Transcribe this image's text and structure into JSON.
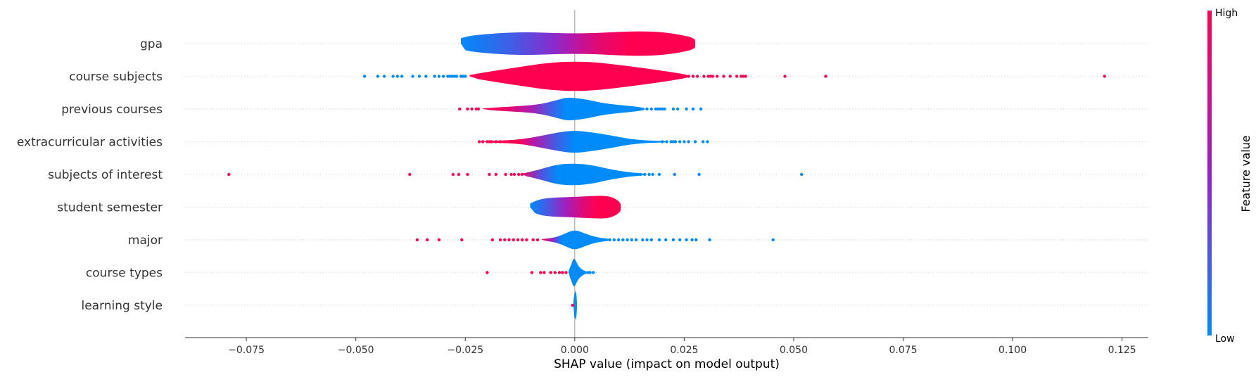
{
  "chart_data": {
    "type": "violin",
    "xlabel": "SHAP value (impact on model output)",
    "xlim": [
      -0.089,
      0.131
    ],
    "xticks": [
      -0.075,
      -0.05,
      -0.025,
      0.0,
      0.025,
      0.05,
      0.075,
      0.1,
      0.125
    ],
    "xtick_labels": [
      "−0.075",
      "−0.050",
      "−0.025",
      "0.000",
      "0.025",
      "0.050",
      "0.075",
      "0.100",
      "0.125"
    ],
    "colorbar": {
      "title": "Feature value",
      "high_label": "High",
      "low_label": "Low",
      "low_color": "#008bfb",
      "high_color": "#ff0051"
    },
    "zero_line": true,
    "features": [
      {
        "name": "gpa",
        "violin": [
          [
            -0.026,
            0.35
          ],
          [
            -0.024,
            0.5
          ],
          [
            -0.02,
            0.62
          ],
          [
            -0.015,
            0.72
          ],
          [
            -0.01,
            0.74
          ],
          [
            -0.005,
            0.68
          ],
          [
            0,
            0.66
          ],
          [
            0.005,
            0.68
          ],
          [
            0.01,
            0.76
          ],
          [
            0.015,
            0.8
          ],
          [
            0.02,
            0.74
          ],
          [
            0.024,
            0.58
          ],
          [
            0.0275,
            0.35
          ]
        ],
        "color": [
          [
            -0.026,
            0.0
          ],
          [
            -0.015,
            0.2
          ],
          [
            -0.005,
            0.45
          ],
          [
            0.0,
            0.65
          ],
          [
            0.005,
            0.85
          ],
          [
            0.012,
            1.0
          ],
          [
            0.0275,
            1.0
          ]
        ],
        "points": []
      },
      {
        "name": "course subjects",
        "violin": [
          [
            -0.024,
            0.08
          ],
          [
            -0.02,
            0.28
          ],
          [
            -0.015,
            0.5
          ],
          [
            -0.01,
            0.72
          ],
          [
            -0.005,
            0.9
          ],
          [
            0,
            0.96
          ],
          [
            0.005,
            0.9
          ],
          [
            0.01,
            0.74
          ],
          [
            0.015,
            0.56
          ],
          [
            0.02,
            0.36
          ],
          [
            0.0245,
            0.16
          ],
          [
            0.026,
            0.06
          ]
        ],
        "color": [
          [
            -0.024,
            1.0
          ],
          [
            0.026,
            1.0
          ]
        ],
        "points": [
          [
            -0.048,
            0
          ],
          [
            -0.045,
            0
          ],
          [
            -0.0435,
            0
          ],
          [
            -0.0415,
            0
          ],
          [
            -0.0405,
            0
          ],
          [
            -0.0395,
            0
          ],
          [
            -0.037,
            0
          ],
          [
            -0.0355,
            0
          ],
          [
            -0.034,
            0
          ],
          [
            -0.032,
            0
          ],
          [
            -0.031,
            0
          ],
          [
            -0.03,
            0
          ],
          [
            -0.029,
            0
          ],
          [
            -0.0285,
            0
          ],
          [
            -0.028,
            0
          ],
          [
            -0.0275,
            0
          ],
          [
            -0.027,
            0
          ],
          [
            -0.026,
            0
          ],
          [
            -0.0255,
            0
          ],
          [
            -0.025,
            0
          ],
          [
            0.026,
            1
          ],
          [
            0.027,
            1
          ],
          [
            0.028,
            1
          ],
          [
            0.0295,
            1
          ],
          [
            0.0305,
            1
          ],
          [
            0.031,
            1
          ],
          [
            0.0315,
            1
          ],
          [
            0.0325,
            1
          ],
          [
            0.034,
            1
          ],
          [
            0.0355,
            1
          ],
          [
            0.037,
            1
          ],
          [
            0.038,
            1
          ],
          [
            0.0385,
            1
          ],
          [
            0.039,
            1
          ],
          [
            0.048,
            1
          ],
          [
            0.0573,
            1
          ],
          [
            0.121,
            1
          ]
        ]
      },
      {
        "name": "previous courses",
        "violin": [
          [
            -0.021,
            0.04
          ],
          [
            -0.017,
            0.12
          ],
          [
            -0.012,
            0.2
          ],
          [
            -0.008,
            0.3
          ],
          [
            -0.004,
            0.58
          ],
          [
            -0.002,
            0.74
          ],
          [
            0.0,
            0.72
          ],
          [
            0.003,
            0.6
          ],
          [
            0.006,
            0.4
          ],
          [
            0.01,
            0.26
          ],
          [
            0.014,
            0.16
          ],
          [
            0.016,
            0.06
          ]
        ],
        "color": [
          [
            -0.021,
            1.0
          ],
          [
            -0.016,
            0.92
          ],
          [
            -0.01,
            0.6
          ],
          [
            -0.006,
            0.25
          ],
          [
            -0.002,
            0.0
          ],
          [
            0.016,
            0.0
          ]
        ],
        "points": [
          [
            -0.0263,
            1
          ],
          [
            -0.0245,
            1
          ],
          [
            -0.0235,
            1
          ],
          [
            -0.0225,
            1
          ],
          [
            -0.022,
            1
          ],
          [
            0.0165,
            0
          ],
          [
            0.0175,
            0
          ],
          [
            0.0185,
            0
          ],
          [
            0.019,
            0
          ],
          [
            0.0195,
            0
          ],
          [
            0.02,
            0
          ],
          [
            0.0205,
            0
          ],
          [
            0.0225,
            0
          ],
          [
            0.0235,
            0
          ],
          [
            0.0255,
            0
          ],
          [
            0.027,
            0
          ],
          [
            0.0288,
            0
          ]
        ]
      },
      {
        "name": "extracurricular activities",
        "violin": [
          [
            -0.021,
            0.04
          ],
          [
            -0.016,
            0.08
          ],
          [
            -0.012,
            0.16
          ],
          [
            -0.008,
            0.36
          ],
          [
            -0.004,
            0.6
          ],
          [
            0.0,
            0.74
          ],
          [
            0.004,
            0.6
          ],
          [
            0.008,
            0.42
          ],
          [
            0.012,
            0.2
          ],
          [
            0.016,
            0.08
          ],
          [
            0.021,
            0.04
          ]
        ],
        "color": [
          [
            -0.021,
            1.0
          ],
          [
            -0.013,
            1.0
          ],
          [
            -0.009,
            0.6
          ],
          [
            -0.004,
            0.2
          ],
          [
            0.0,
            0.0
          ],
          [
            0.021,
            0.0
          ]
        ],
        "points": [
          [
            -0.0218,
            1
          ],
          [
            -0.021,
            1
          ],
          [
            -0.02,
            1
          ],
          [
            -0.0195,
            1
          ],
          [
            -0.019,
            1
          ],
          [
            -0.018,
            1
          ],
          [
            -0.017,
            1
          ],
          [
            -0.016,
            1
          ],
          [
            -0.015,
            1
          ],
          [
            -0.014,
            1
          ],
          [
            -0.013,
            1
          ],
          [
            0.02,
            0
          ],
          [
            0.021,
            0
          ],
          [
            0.022,
            0
          ],
          [
            0.0225,
            0
          ],
          [
            0.023,
            0
          ],
          [
            0.024,
            0
          ],
          [
            0.025,
            0
          ],
          [
            0.026,
            0
          ],
          [
            0.0275,
            0
          ],
          [
            0.0293,
            0
          ],
          [
            0.0303,
            0
          ]
        ]
      },
      {
        "name": "subjects of interest",
        "violin": [
          [
            -0.012,
            0.06
          ],
          [
            -0.01,
            0.18
          ],
          [
            -0.007,
            0.4
          ],
          [
            -0.004,
            0.64
          ],
          [
            0.0,
            0.72
          ],
          [
            0.004,
            0.6
          ],
          [
            0.007,
            0.4
          ],
          [
            0.01,
            0.24
          ],
          [
            0.013,
            0.12
          ],
          [
            0.016,
            0.05
          ]
        ],
        "color": [
          [
            -0.012,
            0.9
          ],
          [
            -0.008,
            0.3
          ],
          [
            -0.004,
            0.0
          ],
          [
            0.016,
            0.0
          ]
        ],
        "points": [
          [
            -0.079,
            1
          ],
          [
            -0.0377,
            1
          ],
          [
            -0.0278,
            1
          ],
          [
            -0.0265,
            1
          ],
          [
            -0.0245,
            1
          ],
          [
            -0.0195,
            1
          ],
          [
            -0.018,
            1
          ],
          [
            -0.0158,
            1
          ],
          [
            -0.0145,
            1
          ],
          [
            -0.0138,
            1
          ],
          [
            -0.0128,
            1
          ],
          [
            -0.012,
            1
          ],
          [
            0.013,
            0
          ],
          [
            0.0138,
            0
          ],
          [
            0.0145,
            0
          ],
          [
            0.015,
            0
          ],
          [
            0.016,
            0
          ],
          [
            0.017,
            0
          ],
          [
            0.0178,
            0
          ],
          [
            0.0193,
            0
          ],
          [
            0.0228,
            0
          ],
          [
            0.0284,
            0
          ],
          [
            0.0518,
            0
          ]
        ]
      },
      {
        "name": "student semester",
        "violin": [
          [
            -0.0102,
            0.24
          ],
          [
            -0.008,
            0.52
          ],
          [
            -0.005,
            0.62
          ],
          [
            -0.002,
            0.64
          ],
          [
            0.001,
            0.68
          ],
          [
            0.004,
            0.72
          ],
          [
            0.007,
            0.74
          ],
          [
            0.009,
            0.6
          ],
          [
            0.0105,
            0.28
          ]
        ],
        "color": [
          [
            -0.0102,
            0.0
          ],
          [
            -0.006,
            0.25
          ],
          [
            -0.002,
            0.55
          ],
          [
            0.002,
            0.85
          ],
          [
            0.005,
            1.0
          ],
          [
            0.0105,
            1.0
          ]
        ],
        "points": []
      },
      {
        "name": "major",
        "violin": [
          [
            -0.0075,
            0.05
          ],
          [
            -0.005,
            0.12
          ],
          [
            -0.003,
            0.3
          ],
          [
            -0.001,
            0.56
          ],
          [
            0.0,
            0.62
          ],
          [
            0.001,
            0.56
          ],
          [
            0.003,
            0.34
          ],
          [
            0.005,
            0.16
          ],
          [
            0.008,
            0.06
          ]
        ],
        "color": [
          [
            -0.0075,
            1.0
          ],
          [
            -0.005,
            0.45
          ],
          [
            -0.003,
            0.0
          ],
          [
            0.008,
            0.0
          ]
        ],
        "points": [
          [
            -0.036,
            1
          ],
          [
            -0.0337,
            1
          ],
          [
            -0.031,
            1
          ],
          [
            -0.0258,
            1
          ],
          [
            -0.0188,
            1
          ],
          [
            -0.017,
            1
          ],
          [
            -0.016,
            1
          ],
          [
            -0.015,
            1
          ],
          [
            -0.014,
            1
          ],
          [
            -0.013,
            1
          ],
          [
            -0.012,
            1
          ],
          [
            -0.011,
            1
          ],
          [
            -0.0095,
            1
          ],
          [
            -0.0085,
            1
          ],
          [
            0.008,
            0
          ],
          [
            0.009,
            0
          ],
          [
            0.01,
            0
          ],
          [
            0.011,
            0
          ],
          [
            0.012,
            0
          ],
          [
            0.013,
            0
          ],
          [
            0.014,
            0
          ],
          [
            0.0155,
            0
          ],
          [
            0.0165,
            0
          ],
          [
            0.0175,
            0
          ],
          [
            0.0193,
            0
          ],
          [
            0.0208,
            0
          ],
          [
            0.0225,
            0
          ],
          [
            0.024,
            0
          ],
          [
            0.0255,
            0
          ],
          [
            0.0268,
            0
          ],
          [
            0.0277,
            0
          ],
          [
            0.0308,
            0
          ],
          [
            0.0453,
            0
          ]
        ]
      },
      {
        "name": "course types",
        "violin": [
          [
            -0.0014,
            0.12
          ],
          [
            -0.0008,
            0.5
          ],
          [
            -0.0004,
            0.86
          ],
          [
            0.0,
            0.9
          ],
          [
            0.0005,
            0.6
          ],
          [
            0.001,
            0.36
          ],
          [
            0.0018,
            0.16
          ],
          [
            0.0028,
            0.06
          ]
        ],
        "color": [
          [
            -0.0014,
            0.0
          ],
          [
            0.0028,
            0.0
          ]
        ],
        "points": [
          [
            -0.02,
            1
          ],
          [
            -0.0098,
            1
          ],
          [
            -0.0078,
            1
          ],
          [
            -0.007,
            1
          ],
          [
            -0.0055,
            1
          ],
          [
            -0.0045,
            1
          ],
          [
            -0.0035,
            1
          ],
          [
            -0.0028,
            1
          ],
          [
            -0.002,
            1
          ],
          [
            0.003,
            0
          ],
          [
            0.0035,
            0
          ],
          [
            0.0042,
            0
          ]
        ]
      },
      {
        "name": "learning style",
        "violin": [
          [
            -0.0003,
            0.3
          ],
          [
            0.0,
            0.9
          ],
          [
            0.0003,
            0.9
          ],
          [
            0.0005,
            0.3
          ]
        ],
        "color": [
          [
            -0.0003,
            0.0
          ],
          [
            0.0005,
            0.0
          ]
        ],
        "points": [
          [
            -0.0005,
            1
          ]
        ]
      }
    ]
  }
}
